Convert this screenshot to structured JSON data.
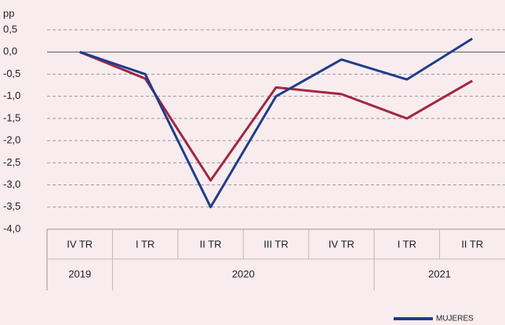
{
  "chart_data": {
    "type": "line",
    "y_unit_label": "pp",
    "categories": [
      "IV TR",
      "I TR",
      "II TR",
      "III TR",
      "IV TR",
      "I TR",
      "II TR"
    ],
    "years": [
      "2019",
      "2020",
      null,
      null,
      null,
      "2021",
      null
    ],
    "series": [
      {
        "name": "MUJERES",
        "color": "#1f3d8a",
        "values": [
          0,
          -0.5,
          -3.5,
          -1.0,
          -0.17,
          -0.62,
          0.3
        ]
      },
      {
        "color": "#a3263f",
        "values": [
          0,
          -0.6,
          -2.9,
          -0.8,
          -0.95,
          -1.5,
          -0.65
        ]
      }
    ],
    "ylim": [
      -4.0,
      0.5
    ],
    "yticks": [
      {
        "value": 0.5,
        "label": "0,5"
      },
      {
        "value": 0,
        "label": "0,0"
      },
      {
        "value": -0.5,
        "label": "-0,5"
      },
      {
        "value": -1.0,
        "label": "-1,0"
      },
      {
        "value": -1.5,
        "label": "-1,5"
      },
      {
        "value": -2.0,
        "label": "-2,0"
      },
      {
        "value": -2.5,
        "label": "-2,5"
      },
      {
        "value": -3.0,
        "label": "-3,0"
      },
      {
        "value": -3.5,
        "label": "-3,5"
      },
      {
        "value": -4.0,
        "label": "-4,0"
      }
    ],
    "grid": true
  }
}
